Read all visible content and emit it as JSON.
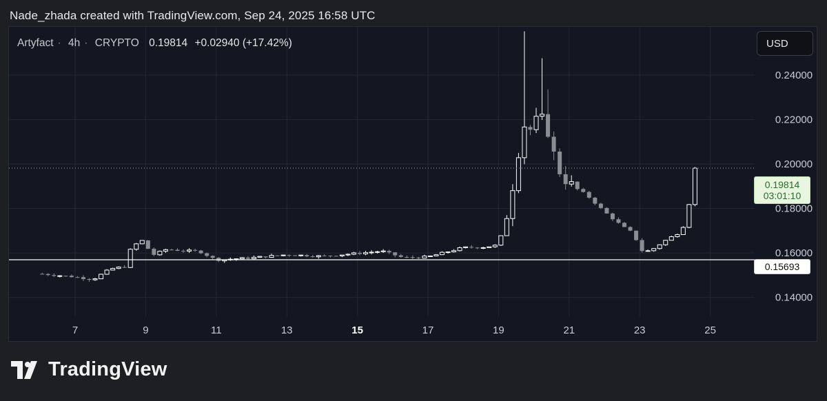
{
  "caption": "Nade_zhada created with TradingView.com, Sep 24, 2025 16:58 UTC",
  "legend": {
    "symbol": "Artyfact",
    "sep1": "·",
    "interval": "4h",
    "sep2": "·",
    "exchange": "CRYPTO",
    "price": "0.19814",
    "change": "+0.02940 (+17.42%)"
  },
  "currency_button": "USD",
  "price_tags": {
    "current": "0.19814",
    "countdown": "03:01:10",
    "hline": "0.15693"
  },
  "brand": {
    "name": "TradingView",
    "logo_icon": "tradingview-logo-icon"
  },
  "colors": {
    "background": "#1e1f22",
    "pane": "#141722",
    "up_candle_fill": "#141722",
    "up_candle_border": "#ffffff",
    "down_candle": "#8b8d93",
    "tag_current_bg": "#e8f5df",
    "tag_current_text": "#2d6a2f"
  },
  "chart_data": {
    "type": "candlestick",
    "title": "Artyfact · 4h · CRYPTO",
    "y_axis": {
      "side": "right",
      "ylim": [
        0.1315,
        0.2617
      ],
      "ticks": [
        0.14,
        0.16,
        0.18,
        0.2,
        0.22,
        0.24
      ],
      "tick_labels": [
        "0.14000",
        "0.16000",
        "0.18000",
        "0.20000",
        "0.22000",
        "0.24000"
      ]
    },
    "x_axis": {
      "ticks": [
        7,
        9,
        11,
        13,
        15,
        17,
        19,
        21,
        23,
        25
      ],
      "tick_labels": [
        "7",
        "9",
        "11",
        "13",
        "15",
        "17",
        "19",
        "21",
        "23",
        "25"
      ],
      "bold_tick": "15",
      "xlim_day": [
        5.9,
        26.5
      ]
    },
    "grid": true,
    "current_price": 0.19814,
    "horizontal_line": 0.15693,
    "anchors": [
      [
        6.0,
        0.1506
      ],
      [
        7.0,
        0.1492
      ],
      [
        7.5,
        0.148
      ],
      [
        8.0,
        0.1528
      ],
      [
        8.4,
        0.1538
      ],
      [
        8.6,
        0.1628
      ],
      [
        8.9,
        0.1655
      ],
      [
        9.2,
        0.159
      ],
      [
        9.6,
        0.1617
      ],
      [
        10.0,
        0.161
      ],
      [
        10.5,
        0.1608
      ],
      [
        11.0,
        0.1568
      ],
      [
        12.0,
        0.1578
      ],
      [
        13.0,
        0.1592
      ],
      [
        14.0,
        0.1585
      ],
      [
        15.0,
        0.1598
      ],
      [
        15.7,
        0.1608
      ],
      [
        16.3,
        0.1578
      ],
      [
        17.0,
        0.1582
      ],
      [
        17.6,
        0.1607
      ],
      [
        18.0,
        0.1624
      ],
      [
        18.6,
        0.1626
      ],
      [
        19.0,
        0.1635
      ],
      [
        19.3,
        0.181
      ],
      [
        19.5,
        0.1995
      ],
      [
        19.7,
        0.218
      ],
      [
        19.9,
        0.2155
      ],
      [
        20.15,
        0.221
      ],
      [
        20.35,
        0.218
      ],
      [
        20.55,
        0.205
      ],
      [
        20.75,
        0.196
      ],
      [
        21.0,
        0.191
      ],
      [
        21.5,
        0.186
      ],
      [
        22.0,
        0.1785
      ],
      [
        22.5,
        0.172
      ],
      [
        22.8,
        0.169
      ],
      [
        23.1,
        0.16
      ],
      [
        23.4,
        0.162
      ],
      [
        23.7,
        0.1653
      ],
      [
        24.1,
        0.169
      ],
      [
        24.35,
        0.1745
      ],
      [
        24.5,
        0.1974
      ],
      [
        24.68,
        0.19814
      ]
    ],
    "notable_highs": [
      [
        19.7,
        0.2597
      ],
      [
        20.2,
        0.2476
      ],
      [
        20.35,
        0.2336
      ]
    ]
  }
}
